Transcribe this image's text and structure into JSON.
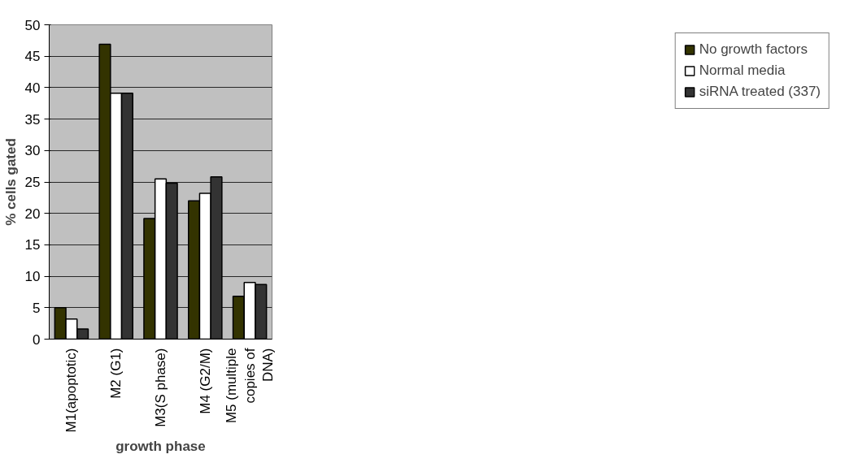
{
  "chart_data": {
    "type": "bar",
    "xlabel": "growth phase",
    "ylabel": "% cells gated",
    "categories": [
      "M1(apoptotic)",
      "M2 (G1)",
      "M3(S phase)",
      "M4 (G2/M)",
      "M5 (multiple copies of DNA)"
    ],
    "series": [
      {
        "name": "No growth factors",
        "color": "#333300",
        "values": [
          5.0,
          46.9,
          19.2,
          22.0,
          6.8
        ]
      },
      {
        "name": "Normal media",
        "color": "#ffffff",
        "values": [
          3.2,
          39.1,
          25.5,
          23.2,
          9.0
        ]
      },
      {
        "name": "siRNA treated (337)",
        "color": "#333333",
        "values": [
          1.6,
          39.1,
          24.8,
          25.8,
          8.7
        ]
      }
    ],
    "ylim": [
      0,
      50
    ],
    "yticks": [
      0,
      5,
      10,
      15,
      20,
      25,
      30,
      35,
      40,
      45,
      50
    ],
    "grid": "y",
    "legend": "right"
  }
}
